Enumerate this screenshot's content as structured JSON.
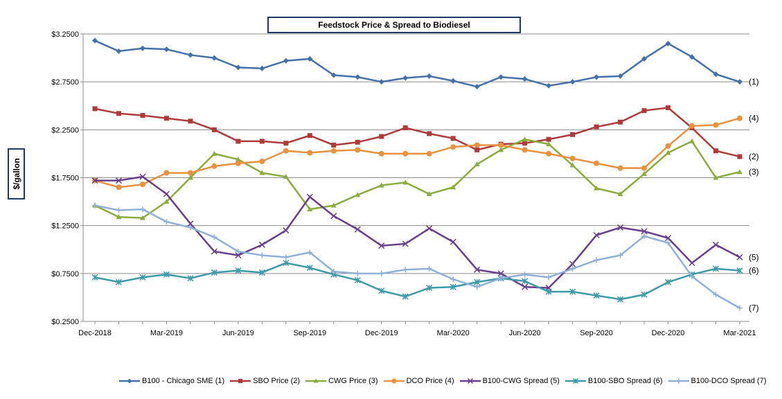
{
  "chart_data": {
    "type": "line",
    "title": "Feedstock Price & Spread to Biodiesel",
    "ylabel": "$/gallon",
    "ylim": [
      0.25,
      3.25
    ],
    "yticks": [
      "$0.2500",
      "$0.7500",
      "$1.2500",
      "$1.7500",
      "$2.2500",
      "$2.7500",
      "$3.2500"
    ],
    "ytick_values": [
      0.25,
      0.75,
      1.25,
      1.75,
      2.25,
      2.75,
      3.25
    ],
    "xlim_months": [
      0,
      27
    ],
    "xticks": [
      "Dec-2018",
      "Mar-2019",
      "Jun-2019",
      "Sep-2019",
      "Dec-2019",
      "Mar-2020",
      "Jun-2020",
      "Sep-2020",
      "Dec-2020",
      "Mar-2021"
    ],
    "grid": "horizontal",
    "legend_position": "bottom",
    "series": [
      {
        "name": "B100 - Chicago SME (1)",
        "color": "#4472a8",
        "marker": "diamond",
        "label": "(1)",
        "values": [
          3.18,
          3.07,
          3.1,
          3.09,
          3.03,
          3.0,
          2.9,
          2.89,
          2.97,
          2.99,
          2.82,
          2.8,
          2.75,
          2.79,
          2.81,
          2.76,
          2.7,
          2.8,
          2.78,
          2.71,
          2.75,
          2.8,
          2.81,
          2.99,
          3.15,
          3.01,
          2.83,
          2.75
        ]
      },
      {
        "name": "SBO Price (2)",
        "color": "#b03a3a",
        "marker": "square",
        "label": "(2)",
        "values": [
          2.47,
          2.42,
          2.4,
          2.37,
          2.34,
          2.25,
          2.13,
          2.13,
          2.11,
          2.19,
          2.09,
          2.12,
          2.18,
          2.27,
          2.21,
          2.16,
          2.04,
          2.1,
          2.11,
          2.15,
          2.2,
          2.28,
          2.33,
          2.45,
          2.48,
          2.27,
          2.03,
          1.97
        ]
      },
      {
        "name": "CWG Price (3)",
        "color": "#8aac3c",
        "marker": "triangle",
        "label": "(3)",
        "values": [
          1.46,
          1.34,
          1.33,
          1.5,
          1.75,
          2.0,
          1.94,
          1.8,
          1.76,
          1.42,
          1.46,
          1.57,
          1.67,
          1.7,
          1.58,
          1.65,
          1.89,
          2.04,
          2.15,
          2.1,
          1.88,
          1.64,
          1.58,
          1.79,
          2.01,
          2.13,
          1.75,
          1.81
        ]
      },
      {
        "name": "DCO Price (4)",
        "color": "#e8913e",
        "marker": "circle",
        "label": "(4)",
        "values": [
          1.72,
          1.65,
          1.68,
          1.8,
          1.8,
          1.87,
          1.9,
          1.92,
          2.03,
          2.01,
          2.03,
          2.04,
          2.0,
          2.0,
          2.0,
          2.07,
          2.09,
          2.09,
          2.04,
          2.0,
          1.95,
          1.9,
          1.85,
          1.85,
          2.08,
          2.29,
          2.3,
          2.37
        ]
      },
      {
        "name": "B100-CWG Spread (5)",
        "color": "#6a3d8c",
        "marker": "x",
        "label": "(5)",
        "values": [
          1.72,
          1.72,
          1.76,
          1.58,
          1.27,
          0.98,
          0.94,
          1.05,
          1.2,
          1.55,
          1.35,
          1.21,
          1.04,
          1.06,
          1.22,
          1.08,
          0.79,
          0.75,
          0.61,
          0.6,
          0.85,
          1.15,
          1.23,
          1.19,
          1.12,
          0.86,
          1.05,
          0.92
        ]
      },
      {
        "name": "B100-SBO Spread (6)",
        "color": "#3d9aa8",
        "marker": "star",
        "label": "(6)",
        "values": [
          0.71,
          0.66,
          0.71,
          0.74,
          0.7,
          0.76,
          0.78,
          0.76,
          0.86,
          0.81,
          0.74,
          0.68,
          0.57,
          0.51,
          0.6,
          0.61,
          0.66,
          0.7,
          0.67,
          0.56,
          0.56,
          0.52,
          0.48,
          0.53,
          0.66,
          0.74,
          0.8,
          0.78
        ]
      },
      {
        "name": "B100-DCO Spread (7)",
        "color": "#8fb0d8",
        "marker": "plus",
        "label": "(7)",
        "values": [
          1.46,
          1.41,
          1.42,
          1.29,
          1.23,
          1.13,
          0.98,
          0.94,
          0.92,
          0.97,
          0.77,
          0.75,
          0.75,
          0.79,
          0.8,
          0.69,
          0.61,
          0.7,
          0.74,
          0.71,
          0.8,
          0.89,
          0.94,
          1.14,
          1.07,
          0.72,
          0.53,
          0.39
        ]
      }
    ]
  }
}
